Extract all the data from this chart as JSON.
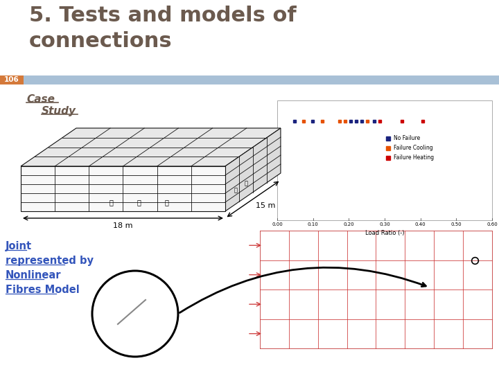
{
  "title_line1": "5. Tests and models of",
  "title_line2": "connections",
  "title_color": "#6b5a4e",
  "title_fontsize": 22,
  "page_num": "106",
  "page_num_bg": "#d4793a",
  "page_num_color": "#ffffff",
  "stripe_color": "#a8c0d6",
  "case_study_color": "#6b5a4e",
  "joint_color": "#3355bb",
  "bg_color": "#ffffff",
  "flame_color": "#cc3300",
  "building_edge_color": "#111111",
  "building_face_color": "#f8f8f8",
  "building_top_color": "#e8e8e8",
  "building_right_color": "#dcdcdc"
}
